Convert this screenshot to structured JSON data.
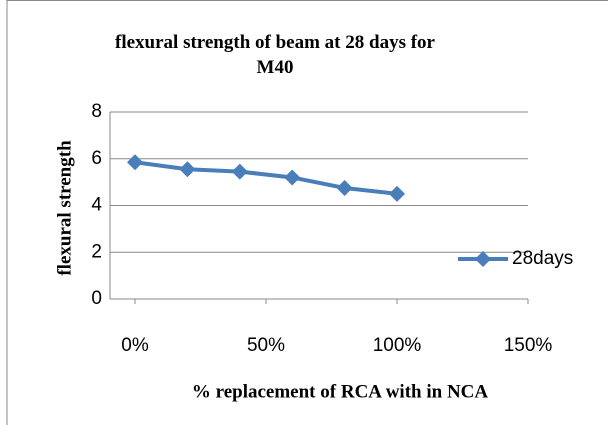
{
  "chart_data": {
    "type": "line",
    "title": "flexural strength of beam at 28 days for M40",
    "title_lines": [
      "flexural strength of beam at 28 days for",
      "M40"
    ],
    "xlabel": "% replacement of RCA with in NCA",
    "ylabel": "flexural strength",
    "x": [
      0,
      0.2,
      0.4,
      0.6,
      0.8,
      1.0
    ],
    "series": [
      {
        "name": "28days",
        "color": "#4a7ebb",
        "values": [
          5.85,
          5.55,
          5.45,
          5.2,
          4.75,
          4.5
        ]
      }
    ],
    "xlim": [
      0,
      1.5
    ],
    "xticks": [
      {
        "value": 0,
        "label": "0%"
      },
      {
        "value": 0.5,
        "label": "50%"
      },
      {
        "value": 1.0,
        "label": "100%"
      },
      {
        "value": 1.5,
        "label": "150%"
      }
    ],
    "ylim": [
      0,
      8
    ],
    "yticks": [
      0,
      2,
      4,
      6,
      8
    ],
    "grid": true,
    "legend": "right"
  }
}
